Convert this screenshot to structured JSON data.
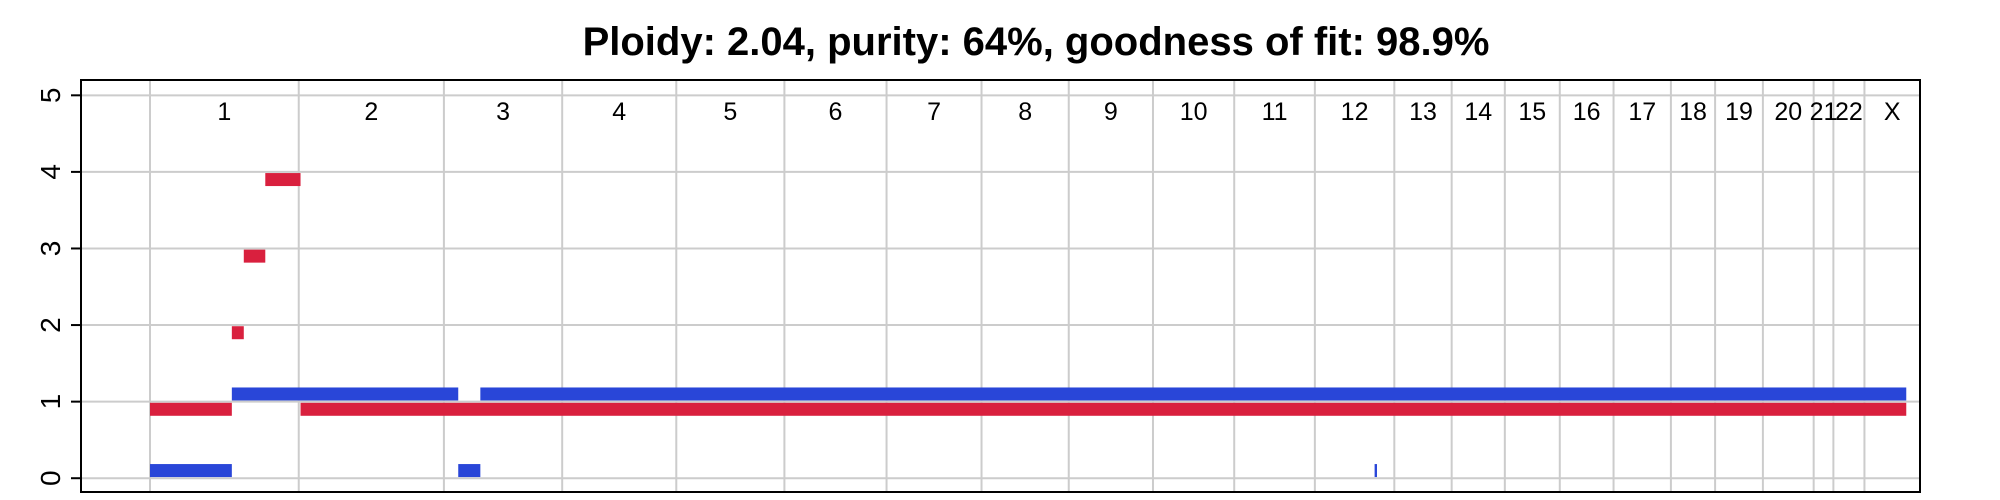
{
  "chart_data": {
    "type": "segments",
    "title": "Ploidy: 2.04, purity: 64%, goodness of fit: 98.9%",
    "ylim": [
      -0.18,
      5.2
    ],
    "y_ticks": [
      0,
      1,
      2,
      3,
      4,
      5
    ],
    "grid": true,
    "colors": {
      "major": "#d9203e",
      "minor": "#2946d8",
      "grid": "#cccccc",
      "axis": "#000000"
    },
    "chromosomes": [
      {
        "label": "1",
        "length": 249
      },
      {
        "label": "2",
        "length": 243
      },
      {
        "label": "3",
        "length": 198
      },
      {
        "label": "4",
        "length": 191
      },
      {
        "label": "5",
        "length": 181
      },
      {
        "label": "6",
        "length": 171
      },
      {
        "label": "7",
        "length": 159
      },
      {
        "label": "8",
        "length": 146
      },
      {
        "label": "9",
        "length": 141
      },
      {
        "label": "10",
        "length": 136
      },
      {
        "label": "11",
        "length": 135
      },
      {
        "label": "12",
        "length": 133
      },
      {
        "label": "13",
        "length": 96
      },
      {
        "label": "14",
        "length": 89
      },
      {
        "label": "15",
        "length": 92
      },
      {
        "label": "16",
        "length": 90
      },
      {
        "label": "17",
        "length": 96
      },
      {
        "label": "18",
        "length": 74
      },
      {
        "label": "19",
        "length": 80
      },
      {
        "label": "20",
        "length": 85
      },
      {
        "label": "21",
        "length": 33
      },
      {
        "label": "22",
        "length": 52
      },
      {
        "label": "X",
        "length": 93
      }
    ],
    "series": [
      {
        "role": "major",
        "segments": [
          {
            "x0": 0,
            "x1": 137,
            "y": 0.9
          },
          {
            "x0": 137,
            "x1": 157,
            "y": 1.9
          },
          {
            "x0": 157,
            "x1": 193,
            "y": 2.9
          },
          {
            "x0": 193,
            "x1": 252,
            "y": 3.9
          },
          {
            "x0": 252,
            "x1": 2940,
            "y": 0.9
          }
        ]
      },
      {
        "role": "minor",
        "segments": [
          {
            "x0": 0,
            "x1": 137,
            "y": 0.1
          },
          {
            "x0": 137,
            "x1": 516,
            "y": 1.1
          },
          {
            "x0": 516,
            "x1": 553,
            "y": 0.1
          },
          {
            "x0": 553,
            "x1": 2940,
            "y": 1.1
          },
          {
            "x0": 2050,
            "x1": 2054,
            "y": 0.1
          }
        ]
      }
    ]
  }
}
